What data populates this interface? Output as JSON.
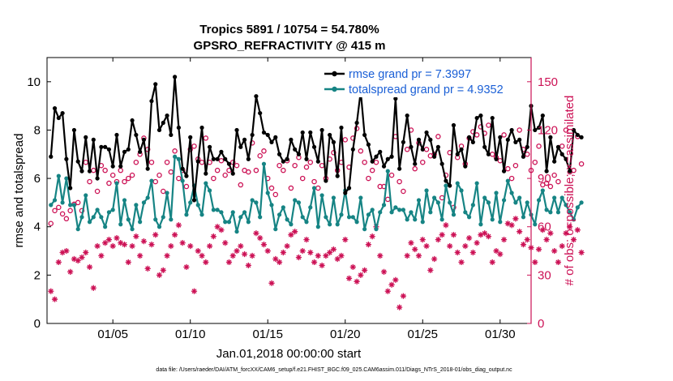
{
  "chart_data": {
    "type": "line",
    "title": "Tropics 5891 / 10754 = 54.780%",
    "subtitle": "GPSRO_REFRACTIVITY @ 415 m",
    "xlabel": "Jan.01,2018 00:00:00 start",
    "ylabel": "rmse and totalspread",
    "y2label": "# of obs: o=possible; ×=assimilated",
    "footer": "data file: /Users/raeder/DAI/ATM_forcXX/CAM6_setup/f.e21.FHIST_BGC.f09_025.CAM6assim.011/Diags_NTrS_2018-01/obs_diag_output.nc",
    "xlim": [
      0.75,
      32.0
    ],
    "ylim": [
      0,
      11
    ],
    "y2lim": [
      0,
      165
    ],
    "xticks": [
      5,
      10,
      15,
      20,
      25,
      30
    ],
    "xtick_labels": [
      "01/05",
      "01/10",
      "01/15",
      "01/20",
      "01/25",
      "01/30"
    ],
    "yticks": [
      0,
      2,
      4,
      6,
      8,
      10
    ],
    "y2ticks": [
      0,
      30,
      60,
      90,
      120,
      150
    ],
    "x_start": 1.0,
    "x_step": 0.25,
    "series": [
      {
        "name": "rmse",
        "legend": "rmse grand pr = 7.3997",
        "color": "#000000",
        "axis": "left",
        "values": [
          6.9,
          8.9,
          8.5,
          8.7,
          6.8,
          5.6,
          8.0,
          6.7,
          6.3,
          7.7,
          6.3,
          7.6,
          6.0,
          7.3,
          7.3,
          7.2,
          6.5,
          7.8,
          6.5,
          7.1,
          7.2,
          8.4,
          7.8,
          7.1,
          7.6,
          6.4,
          9.2,
          9.9,
          8.0,
          8.3,
          8.6,
          7.8,
          10.2,
          8.1,
          6.4,
          6.1,
          7.7,
          5.1,
          6.7,
          8.1,
          6.2,
          7.3,
          6.8,
          6.8,
          7.1,
          6.8,
          6.6,
          6.2,
          8.0,
          7.3,
          7.6,
          6.8,
          7.8,
          9.4,
          8.7,
          7.9,
          7.8,
          7.5,
          7.7,
          7.0,
          6.7,
          6.8,
          7.6,
          7.2,
          7.0,
          7.9,
          6.8,
          7.9,
          7.3,
          6.7,
          8.0,
          5.9,
          7.8,
          7.5,
          6.1,
          8.1,
          5.4,
          5.6,
          7.2,
          8.3,
          9.6,
          7.8,
          7.4,
          6.7,
          6.9,
          7.1,
          6.5,
          6.8,
          6.9,
          9.3,
          6.4,
          7.5,
          8.6,
          7.3,
          6.6,
          7.6,
          7.2,
          7.9,
          7.6,
          6.9,
          7.3,
          6.6,
          5.9,
          5.7,
          8.2,
          7.0,
          7.2,
          6.5,
          7.7,
          7.5,
          8.5,
          8.6,
          7.3,
          7.0,
          8.5,
          6.8,
          7.7,
          6.3,
          7.6,
          8.0,
          7.5,
          7.6,
          6.9,
          7.3,
          9.0,
          8.0,
          8.1,
          8.6,
          6.3,
          7.7,
          6.7,
          7.3,
          7.0,
          6.8,
          6.3,
          8.0,
          7.8,
          7.7
        ]
      },
      {
        "name": "totalspread",
        "legend": "totalspread grand pr = 4.9352",
        "color": "#168484",
        "axis": "left",
        "values": [
          4.9,
          5.1,
          6.1,
          5.0,
          6.0,
          4.9,
          4.9,
          3.9,
          4.4,
          5.3,
          4.2,
          4.4,
          4.7,
          4.4,
          4.0,
          4.6,
          4.7,
          5.8,
          4.1,
          5.1,
          4.3,
          3.9,
          4.9,
          4.2,
          5.0,
          5.2,
          5.9,
          4.3,
          4.0,
          4.4,
          5.4,
          4.3,
          6.9,
          6.8,
          5.9,
          4.5,
          5.0,
          5.7,
          4.9,
          4.5,
          5.8,
          5.5,
          4.7,
          4.7,
          4.6,
          4.2,
          4.2,
          4.6,
          3.8,
          4.4,
          4.6,
          4.2,
          5.1,
          5.0,
          4.4,
          6.6,
          5.4,
          4.9,
          3.9,
          4.5,
          4.8,
          4.3,
          4.1,
          5.1,
          5.0,
          4.4,
          4.2,
          4.8,
          5.6,
          4.0,
          5.3,
          4.4,
          4.1,
          5.2,
          4.1,
          4.5,
          5.5,
          4.4,
          4.4,
          4.2,
          5.2,
          3.9,
          4.5,
          4.7,
          3.9,
          4.6,
          4.9,
          6.3,
          4.6,
          4.8,
          4.7,
          4.7,
          4.3,
          4.6,
          4.3,
          5.1,
          4.2,
          5.5,
          4.6,
          5.2,
          5.0,
          4.3,
          5.7,
          5.0,
          4.5,
          5.8,
          5.5,
          4.6,
          4.4,
          4.9,
          5.8,
          4.1,
          5.2,
          5.0,
          4.3,
          5.4,
          4.2,
          5.1,
          5.9,
          5.4,
          5.0,
          5.2,
          4.4,
          5.0,
          4.5,
          4.1,
          5.1,
          5.5,
          4.7,
          4.6,
          5.2,
          4.6,
          5.2,
          4.9,
          4.6,
          4.3,
          4.8,
          5.0
        ]
      },
      {
        "name": "possible",
        "legend": "",
        "color": "#cc1155",
        "marker": "circle",
        "axis": "right",
        "values": [
          62,
          70,
          72,
          68,
          65,
          70,
          74,
          75,
          70,
          100,
          88,
          95,
          82,
          98,
          95,
          87,
          92,
          88,
          95,
          88,
          90,
          92,
          100,
          105,
          115,
          108,
          100,
          88,
          92,
          82,
          100,
          94,
          107,
          90,
          95,
          85,
          108,
          110,
          102,
          100,
          115,
          100,
          90,
          95,
          101,
          92,
          95,
          100,
          98,
          86,
          95,
          94,
          112,
          95,
          104,
          107,
          90,
          84,
          80,
          98,
          95,
          101,
          84,
          98,
          103,
          90,
          97,
          100,
          88,
          84,
          98,
          90,
          102,
          106,
          95,
          100,
          114,
          97,
          115,
          121,
          107,
          100,
          90,
          95,
          100,
          85,
          85,
          77,
          92,
          116,
          88,
          82,
          108,
          120,
          96,
          112,
          100,
          108,
          104,
          105,
          116,
          78,
          92,
          106,
          72,
          103,
          110,
          99,
          115,
          119,
          117,
          122,
          118,
          123,
          105,
          103,
          101,
          117,
          96,
          90,
          98,
          120,
          108,
          105,
          95,
          100,
          110,
          86,
          87,
          85,
          92,
          88,
          110,
          120,
          94,
          95,
          116,
          99
        ]
      },
      {
        "name": "assimilated",
        "legend": "",
        "color": "#cc1155",
        "marker": "asterisk",
        "axis": "right",
        "values": [
          20,
          15,
          38,
          44,
          45,
          32,
          40,
          39,
          41,
          44,
          35,
          22,
          48,
          42,
          50,
          52,
          48,
          53,
          50,
          49,
          38,
          48,
          54,
          42,
          51,
          34,
          49,
          55,
          30,
          33,
          42,
          48,
          55,
          61,
          50,
          35,
          48,
          20,
          45,
          42,
          38,
          48,
          54,
          60,
          58,
          50,
          38,
          42,
          45,
          48,
          43,
          36,
          42,
          56,
          53,
          49,
          45,
          25,
          40,
          38,
          44,
          48,
          55,
          57,
          41,
          45,
          52,
          44,
          38,
          42,
          36,
          42,
          44,
          46,
          40,
          42,
          52,
          28,
          35,
          26,
          30,
          33,
          49,
          54,
          60,
          42,
          32,
          20,
          24,
          27,
          10,
          17,
          42,
          50,
          46,
          42,
          52,
          48,
          33,
          40,
          52,
          55,
          61,
          48,
          55,
          44,
          38,
          48,
          53,
          44,
          50,
          55,
          56,
          54,
          38,
          45,
          43,
          52,
          62,
          61,
          65,
          57,
          49,
          52,
          47,
          38,
          46,
          58,
          52,
          56,
          45,
          38,
          48,
          56,
          60,
          52,
          58,
          44
        ]
      }
    ]
  }
}
